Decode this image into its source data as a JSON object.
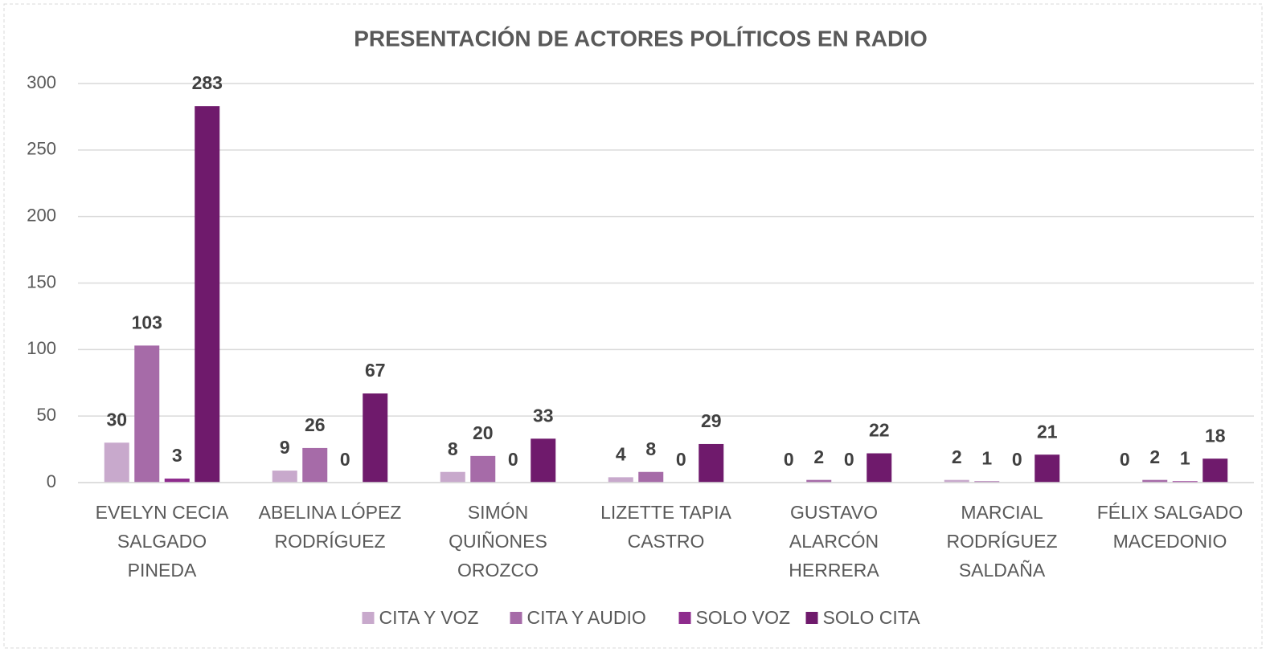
{
  "chart_data": {
    "type": "bar",
    "title": "PRESENTACIÓN DE ACTORES POLÍTICOS EN RADIO",
    "categories": [
      [
        "EVELYN CECIA",
        "SALGADO",
        "PINEDA"
      ],
      [
        "ABELINA LÓPEZ",
        "RODRÍGUEZ"
      ],
      [
        "SIMÓN",
        "QUIÑONES",
        "OROZCO"
      ],
      [
        "LIZETTE TAPIA",
        "CASTRO"
      ],
      [
        "GUSTAVO",
        "ALARCÓN",
        "HERRERA"
      ],
      [
        "MARCIAL",
        "RODRÍGUEZ",
        "SALDAÑA"
      ],
      [
        "FÉLIX SALGADO",
        "MACEDONIO"
      ]
    ],
    "series": [
      {
        "name": "CITA Y VOZ",
        "color": "#c8a9cc",
        "values": [
          30,
          9,
          8,
          4,
          0,
          2,
          0
        ]
      },
      {
        "name": "CITA Y AUDIO",
        "color": "#a66ba8",
        "values": [
          103,
          26,
          20,
          8,
          2,
          1,
          2
        ]
      },
      {
        "name": "SOLO VOZ",
        "color": "#8e2b8d",
        "values": [
          3,
          0,
          0,
          0,
          0,
          0,
          1
        ]
      },
      {
        "name": "SOLO CITA",
        "color": "#6f1a6c",
        "values": [
          283,
          67,
          33,
          29,
          22,
          21,
          18
        ]
      }
    ],
    "ylim": [
      0,
      300
    ],
    "yticks": [
      0,
      50,
      100,
      150,
      200,
      250,
      300
    ],
    "grid": true,
    "legend": "bottom"
  }
}
